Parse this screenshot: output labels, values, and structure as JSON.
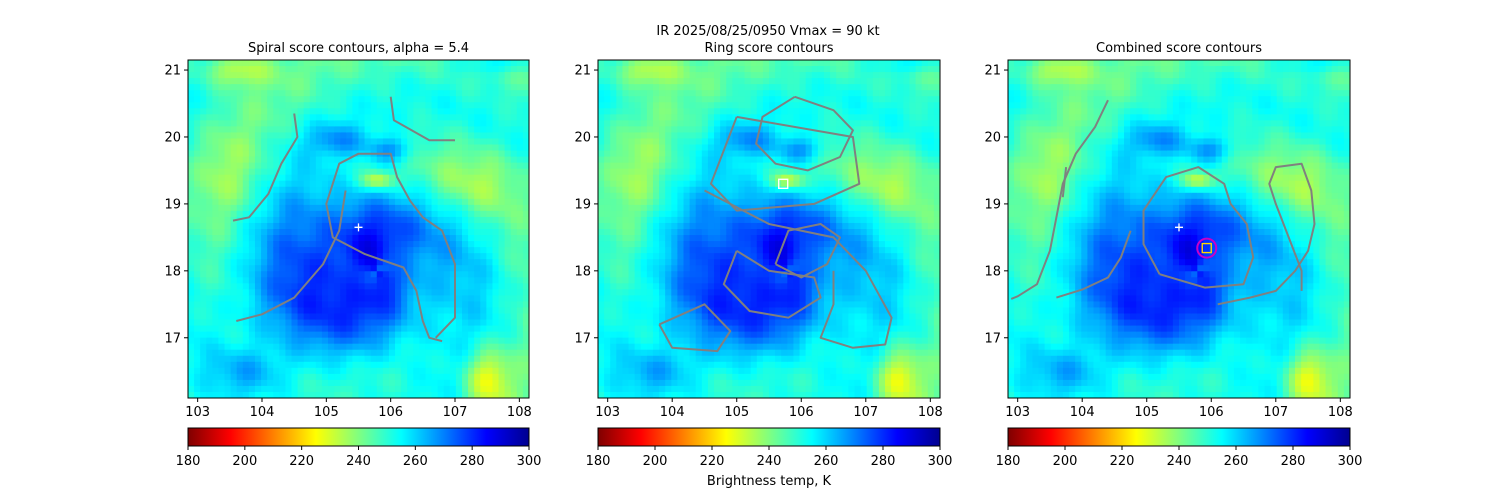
{
  "figure": {
    "suptitle_line1": "IR  2025/08/25/0950    Vmax = 90 kt",
    "colorbar_label": "Brightness temp, K"
  },
  "colorbar": {
    "min": 180,
    "max": 300,
    "ticks": [
      "180",
      "200",
      "220",
      "240",
      "260",
      "280",
      "300"
    ],
    "colors": [
      "#7f0000",
      "#ff0000",
      "#ff8000",
      "#ffff00",
      "#80ff80",
      "#00ffff",
      "#0080ff",
      "#0000ff",
      "#00008f"
    ]
  },
  "chart_data": [
    {
      "type": "heatmap",
      "title": "Spiral score contours, alpha =  5.4",
      "xlim": [
        102.85,
        108.15
      ],
      "ylim": [
        16.1,
        21.15
      ],
      "xticks": [
        "103",
        "104",
        "105",
        "106",
        "107",
        "108"
      ],
      "yticks": [
        "17",
        "18",
        "19",
        "20",
        "21"
      ],
      "markers": [
        {
          "kind": "plus",
          "x": 105.5,
          "y": 18.65,
          "color": "#ffffff"
        }
      ],
      "contours": [
        [
          [
            104.5,
            20.35
          ],
          [
            104.55,
            20.0
          ],
          [
            104.3,
            19.6
          ],
          [
            104.1,
            19.15
          ],
          [
            103.8,
            18.8
          ],
          [
            103.55,
            18.75
          ]
        ],
        [
          [
            106.0,
            20.6
          ],
          [
            106.05,
            20.25
          ],
          [
            106.6,
            19.95
          ],
          [
            107.0,
            19.95
          ]
        ],
        [
          [
            106.8,
            16.95
          ],
          [
            106.6,
            17.0
          ],
          [
            106.5,
            17.25
          ],
          [
            106.4,
            17.7
          ],
          [
            106.2,
            18.05
          ],
          [
            105.6,
            18.25
          ],
          [
            105.1,
            18.5
          ],
          [
            105.0,
            19.0
          ],
          [
            105.2,
            19.6
          ],
          [
            105.5,
            19.75
          ],
          [
            106.0,
            19.75
          ],
          [
            106.1,
            19.4
          ],
          [
            106.3,
            19.05
          ],
          [
            106.5,
            18.8
          ],
          [
            106.8,
            18.6
          ],
          [
            107.0,
            18.1
          ],
          [
            107.0,
            17.3
          ],
          [
            106.7,
            17.0
          ]
        ],
        [
          [
            103.6,
            17.25
          ],
          [
            104.0,
            17.35
          ],
          [
            104.5,
            17.6
          ],
          [
            104.95,
            18.1
          ],
          [
            105.2,
            18.6
          ],
          [
            105.3,
            19.2
          ]
        ]
      ]
    },
    {
      "type": "heatmap",
      "title": "Ring score contours",
      "xlim": [
        102.85,
        108.15
      ],
      "ylim": [
        16.1,
        21.15
      ],
      "xticks": [
        "103",
        "104",
        "105",
        "106",
        "107",
        "108"
      ],
      "yticks": [
        "17",
        "18",
        "19",
        "20",
        "21"
      ],
      "markers": [
        {
          "kind": "square",
          "x": 105.72,
          "y": 19.3,
          "color": "#ffffff"
        }
      ],
      "contours": [
        [
          [
            105.9,
            20.6
          ],
          [
            106.5,
            20.4
          ],
          [
            106.8,
            20.1
          ],
          [
            106.6,
            19.7
          ],
          [
            106.1,
            19.5
          ],
          [
            105.6,
            19.6
          ],
          [
            105.3,
            19.9
          ],
          [
            105.4,
            20.3
          ],
          [
            105.9,
            20.6
          ]
        ],
        [
          [
            105.0,
            20.3
          ],
          [
            106.8,
            20.0
          ],
          [
            106.9,
            19.3
          ],
          [
            106.2,
            19.0
          ],
          [
            105.0,
            18.9
          ],
          [
            104.6,
            19.3
          ],
          [
            104.8,
            19.8
          ],
          [
            105.0,
            20.3
          ]
        ],
        [
          [
            104.5,
            19.2
          ],
          [
            105.5,
            18.7
          ],
          [
            106.5,
            18.5
          ],
          [
            107.0,
            18.0
          ],
          [
            107.4,
            17.3
          ],
          [
            107.3,
            16.9
          ],
          [
            106.8,
            16.85
          ],
          [
            106.3,
            17.0
          ],
          [
            106.5,
            17.5
          ],
          [
            106.5,
            18.0
          ]
        ],
        [
          [
            105.0,
            18.3
          ],
          [
            105.5,
            18.0
          ],
          [
            106.2,
            17.9
          ],
          [
            106.3,
            17.6
          ],
          [
            105.8,
            17.3
          ],
          [
            105.2,
            17.4
          ],
          [
            104.8,
            17.8
          ],
          [
            105.0,
            18.3
          ]
        ],
        [
          [
            103.8,
            17.2
          ],
          [
            104.5,
            17.5
          ],
          [
            104.9,
            17.1
          ],
          [
            104.7,
            16.8
          ],
          [
            104.0,
            16.85
          ],
          [
            103.8,
            17.2
          ]
        ],
        [
          [
            105.6,
            18.1
          ],
          [
            106.0,
            17.9
          ],
          [
            106.4,
            18.1
          ],
          [
            106.6,
            18.5
          ],
          [
            106.3,
            18.7
          ],
          [
            105.8,
            18.6
          ],
          [
            105.6,
            18.1
          ]
        ]
      ]
    },
    {
      "type": "heatmap",
      "title": "Combined score contours",
      "xlim": [
        102.85,
        108.15
      ],
      "ylim": [
        16.1,
        21.15
      ],
      "xticks": [
        "103",
        "104",
        "105",
        "106",
        "107",
        "108"
      ],
      "yticks": [
        "17",
        "18",
        "19",
        "20",
        "21"
      ],
      "markers": [
        {
          "kind": "plus",
          "x": 105.5,
          "y": 18.65,
          "color": "#ffffff"
        },
        {
          "kind": "circle",
          "x": 105.93,
          "y": 18.34,
          "color": "#c800c8"
        },
        {
          "kind": "square",
          "x": 105.93,
          "y": 18.34,
          "color": "#ffd700"
        }
      ],
      "contours": [
        [
          [
            103.7,
            19.1
          ],
          [
            103.75,
            19.55
          ]
        ],
        [
          [
            104.4,
            20.55
          ],
          [
            104.2,
            20.15
          ],
          [
            103.9,
            19.75
          ],
          [
            103.7,
            19.3
          ],
          [
            103.6,
            18.8
          ],
          [
            103.5,
            18.3
          ],
          [
            103.3,
            17.8
          ],
          [
            103.0,
            17.62
          ],
          [
            102.9,
            17.58
          ]
        ],
        [
          [
            105.2,
            17.95
          ],
          [
            105.9,
            17.75
          ],
          [
            106.5,
            17.8
          ],
          [
            106.65,
            18.2
          ],
          [
            106.55,
            18.7
          ],
          [
            106.3,
            19.0
          ],
          [
            106.2,
            19.3
          ],
          [
            105.8,
            19.55
          ],
          [
            105.3,
            19.4
          ],
          [
            104.95,
            18.9
          ],
          [
            104.95,
            18.4
          ],
          [
            105.2,
            17.95
          ]
        ],
        [
          [
            106.1,
            17.5
          ],
          [
            106.6,
            17.6
          ],
          [
            107.0,
            17.7
          ],
          [
            107.3,
            18.0
          ],
          [
            107.5,
            18.3
          ],
          [
            107.6,
            18.7
          ],
          [
            107.55,
            19.2
          ],
          [
            107.4,
            19.6
          ],
          [
            107.0,
            19.55
          ],
          [
            106.9,
            19.3
          ],
          [
            107.0,
            19.0
          ],
          [
            107.2,
            18.5
          ],
          [
            107.4,
            18.0
          ],
          [
            107.4,
            17.7
          ]
        ],
        [
          [
            103.6,
            17.6
          ],
          [
            104.0,
            17.72
          ],
          [
            104.4,
            17.9
          ],
          [
            104.6,
            18.2
          ],
          [
            104.75,
            18.6
          ]
        ]
      ]
    }
  ]
}
